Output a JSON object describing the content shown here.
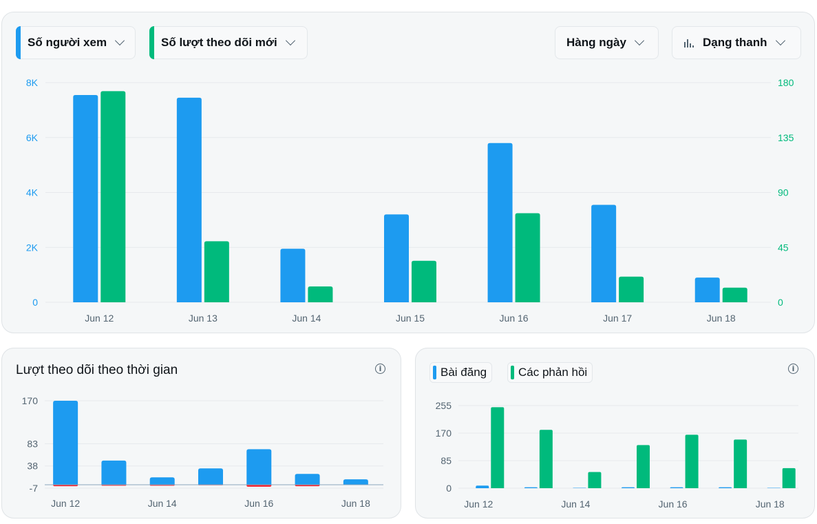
{
  "colors": {
    "blue": "#1d9bf0",
    "green": "#00ba7c",
    "red": "#f4212e",
    "grid": "#e6e9ec",
    "axis_text": "#536471"
  },
  "controls": {
    "metric1": {
      "label": "Số người xem",
      "color": "#1d9bf0"
    },
    "metric2": {
      "label": "Số lượt theo dõi mới",
      "color": "#00ba7c"
    },
    "period": {
      "label": "Hàng ngày"
    },
    "chart_type": {
      "label": "Dạng thanh",
      "icon": "bar-chart-icon"
    }
  },
  "follow_card": {
    "title": "Lượt theo dõi theo thời gian",
    "info_icon": "info-icon"
  },
  "posts_card": {
    "legend": [
      "Bài đăng",
      "Các phản hồi"
    ],
    "info_icon": "info-icon"
  },
  "chart_data": [
    {
      "type": "bar",
      "categories": [
        "Jun 12",
        "Jun 13",
        "Jun 14",
        "Jun 15",
        "Jun 16",
        "Jun 17",
        "Jun 18"
      ],
      "series": [
        {
          "name": "Số người xem",
          "axis": "left",
          "color": "#1d9bf0",
          "values": [
            7550,
            7450,
            1950,
            3200,
            5800,
            3550,
            900
          ]
        },
        {
          "name": "Số lượt theo dõi mới",
          "axis": "right",
          "color": "#00ba7c",
          "values": [
            173,
            50,
            13,
            34,
            73,
            21,
            12
          ]
        }
      ],
      "y_left": {
        "ticks": [
          "0",
          "2K",
          "4K",
          "6K",
          "8K"
        ],
        "ylim": [
          0,
          8000
        ]
      },
      "y_right": {
        "ticks": [
          "0",
          "45",
          "90",
          "135",
          "180"
        ],
        "ylim": [
          0,
          180
        ]
      },
      "grid": true
    },
    {
      "type": "bar",
      "title": "Lượt theo dõi theo thời gian",
      "categories": [
        "Jun 12",
        "Jun 13",
        "Jun 14",
        "Jun 15",
        "Jun 16",
        "Jun 17",
        "Jun 18"
      ],
      "x_tick_labels": [
        "Jun 12",
        "",
        "Jun 14",
        "",
        "Jun 16",
        "",
        "Jun 18"
      ],
      "series": [
        {
          "color": "#1d9bf0",
          "values": [
            170,
            49,
            15,
            33,
            72,
            22,
            11
          ]
        },
        {
          "color": "#f4212e",
          "values": [
            -3,
            -2,
            -2,
            -1,
            -4,
            -3,
            0
          ]
        }
      ],
      "y_ticks": [
        "-7",
        "38",
        "83",
        "170"
      ],
      "y_tick_values": [
        -7,
        38,
        83,
        170
      ],
      "ylim": [
        -7,
        170
      ],
      "grid": true
    },
    {
      "type": "bar",
      "categories": [
        "Jun 12",
        "Jun 13",
        "Jun 14",
        "Jun 15",
        "Jun 16",
        "Jun 17",
        "Jun 18"
      ],
      "x_tick_labels": [
        "Jun 12",
        "",
        "Jun 14",
        "",
        "Jun 16",
        "",
        "Jun 18"
      ],
      "series": [
        {
          "name": "Bài đăng",
          "color": "#1d9bf0",
          "values": [
            8,
            3,
            1,
            3,
            3,
            3,
            1
          ]
        },
        {
          "name": "Các phản hồi",
          "color": "#00ba7c",
          "values": [
            250,
            180,
            50,
            133,
            165,
            150,
            62
          ]
        }
      ],
      "y_ticks": [
        "0",
        "85",
        "170",
        "255"
      ],
      "ylim": [
        0,
        255
      ],
      "grid": true
    }
  ]
}
